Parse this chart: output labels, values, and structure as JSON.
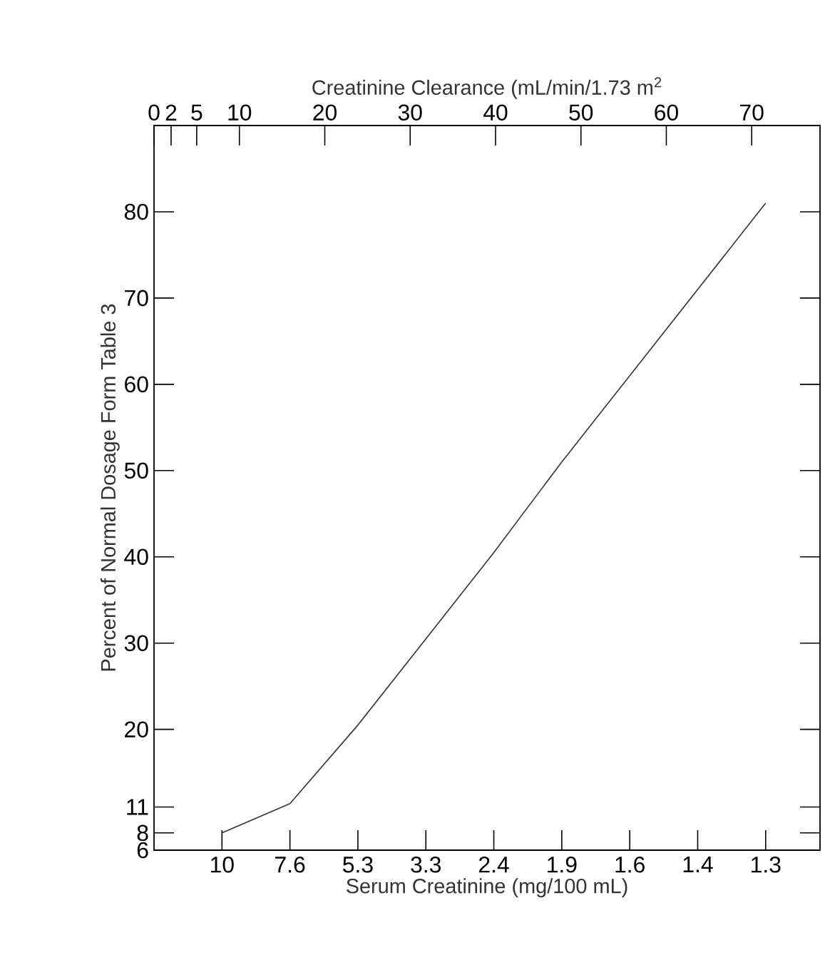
{
  "chart_data": {
    "type": "line",
    "xlabel": "Serum Creatinine (mg/100 mL)",
    "x2label": "Creatinine Clearance (mL/min/1.73 m$^{2}$",
    "ylabel": "Percent of Normal Dosage Form Table 3",
    "categories": [
      "10",
      "7.6",
      "5.3",
      "3.3",
      "2.4",
      "1.9",
      "1.6",
      "1.4",
      "1.3"
    ],
    "series": [
      {
        "color": "#333333",
        "values": [
          8,
          11.4,
          20.5,
          30.5,
          40.5,
          51,
          61,
          71,
          81
        ]
      }
    ],
    "ylim": [
      6,
      90
    ],
    "x2lim": [
      0,
      78
    ],
    "x2ticks": [
      0,
      2,
      5,
      10,
      20,
      30,
      40,
      50,
      60,
      70
    ],
    "yticks": [
      6,
      8,
      11,
      20,
      30,
      40,
      50,
      60,
      70,
      80
    ],
    "grid": false,
    "marker": "none",
    "line_style": "solid"
  }
}
